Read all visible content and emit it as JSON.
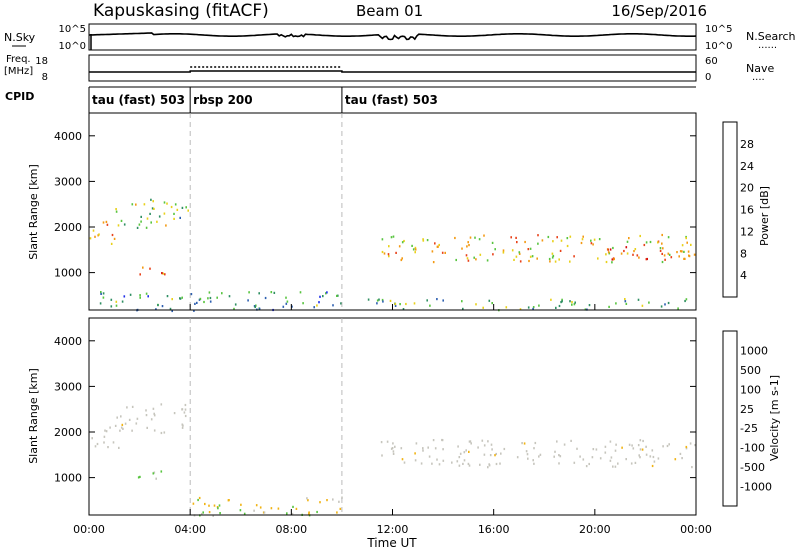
{
  "header": {
    "station": "Kapuskasing (fitACF)",
    "beam": "Beam 01",
    "date": "16/Sep/2016"
  },
  "top_panels": {
    "nsky": {
      "label": "N.Sky",
      "left_ticks": [
        "10^5",
        "10^0"
      ],
      "right_ticks": [
        "10^5",
        "10^0"
      ],
      "right_label": "N.Search",
      "right_legend": "......"
    },
    "freq": {
      "label_line1": "Freq.",
      "label_line2": "[MHz]",
      "left_ticks": [
        "18",
        "8"
      ],
      "right_ticks": [
        "60",
        "0"
      ],
      "right_label": "Nave",
      "right_legend": "....",
      "freq_level_mhz": 10,
      "nave_level": 30
    },
    "cpid": {
      "label": "CPID",
      "segments": [
        {
          "label": "tau (fast) 503",
          "start_h": 0,
          "end_h": 4
        },
        {
          "label": "rbsp 200",
          "start_h": 4,
          "end_h": 10
        },
        {
          "label": "tau (fast) 503",
          "start_h": 10,
          "end_h": 24
        }
      ]
    }
  },
  "chart_data": [
    {
      "type": "heatmap",
      "name": "power-panel",
      "ylabel": "Slant Range [km]",
      "yticks": [
        "1000",
        "2000",
        "3000",
        "4000"
      ],
      "ylim": [
        180,
        4500
      ],
      "xlim": [
        0,
        24
      ],
      "colorbar": {
        "label": "Power [dB]",
        "ticks": [
          "4",
          "8",
          "12",
          "16",
          "20",
          "24",
          "28"
        ],
        "colors": [
          "#1e2ee8",
          "#2d5fb0",
          "#2f8f62",
          "#58c43f",
          "#e8d11a",
          "#f39a13",
          "#e8421a",
          "#d40f0f"
        ]
      },
      "regions": [
        {
          "t0": 0.0,
          "t1": 1.3,
          "r0": 1650,
          "r1": 2150,
          "level": 0.72
        },
        {
          "t0": 1.0,
          "t1": 3.9,
          "r0": 2000,
          "r1": 2650,
          "level": 0.45
        },
        {
          "t0": 1.7,
          "t1": 3.0,
          "r0": 920,
          "r1": 1180,
          "level": 0.78
        },
        {
          "t0": 0.0,
          "t1": 10.0,
          "r0": 180,
          "r1": 600,
          "level": 0.3
        },
        {
          "t0": 11.5,
          "t1": 24.0,
          "r0": 1250,
          "r1": 1850,
          "level": 0.62
        },
        {
          "t0": 20.0,
          "t1": 24.0,
          "r0": 1300,
          "r1": 1600,
          "level": 0.8
        },
        {
          "t0": 11.0,
          "t1": 24.0,
          "r0": 200,
          "r1": 450,
          "level": 0.35
        }
      ]
    },
    {
      "type": "heatmap",
      "name": "velocity-panel",
      "ylabel": "Slant Range [km]",
      "yticks": [
        "1000",
        "2000",
        "3000",
        "4000"
      ],
      "ylim": [
        180,
        4500
      ],
      "xlim": [
        0,
        24
      ],
      "xlabel": "Time UT",
      "xticks": [
        "00:00",
        "04:00",
        "08:00",
        "12:00",
        "16:00",
        "20:00",
        "00:00"
      ],
      "colorbar": {
        "label": "Velocity [m s-1]",
        "ticks": [
          "1000",
          "500",
          "100",
          "25",
          "-25",
          "-100",
          "-500",
          "-1000"
        ],
        "colors": [
          "#1b3cae",
          "#3b7fbf",
          "#3e9b57",
          "#58c43f",
          "#c6c5bd",
          "#f1b313",
          "#f07c16",
          "#e4501c",
          "#d40f0f"
        ]
      },
      "regions": [
        {
          "t0": 0.0,
          "t1": 1.3,
          "r0": 1650,
          "r1": 2150,
          "level": "gray"
        },
        {
          "t0": 1.0,
          "t1": 3.9,
          "r0": 2000,
          "r1": 2650,
          "level": "gray"
        },
        {
          "t0": 1.7,
          "t1": 3.0,
          "r0": 920,
          "r1": 1180,
          "level": "green"
        },
        {
          "t0": 4.0,
          "t1": 10.0,
          "r0": 180,
          "r1": 600,
          "level": "orange"
        },
        {
          "t0": 11.5,
          "t1": 24.0,
          "r0": 1250,
          "r1": 1850,
          "level": "gray"
        }
      ]
    }
  ]
}
